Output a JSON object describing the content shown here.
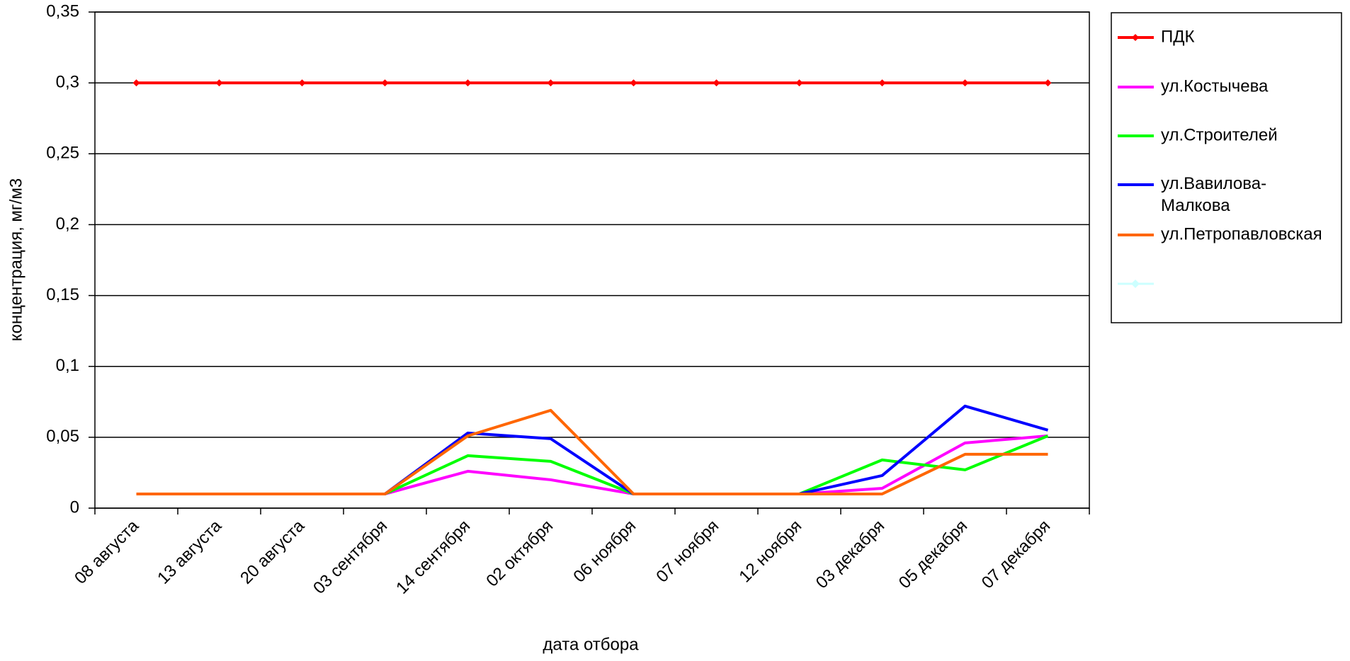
{
  "chart_data": {
    "type": "line",
    "y_label": "концентрация, мг/м3",
    "x_label": "дата отбора",
    "categories": [
      "08 августа",
      "13 августа",
      "20 августа",
      "03 сентября",
      "14 сентября",
      "02 октября",
      "06 ноября",
      "07 ноября",
      "12 ноября",
      "03 декабря",
      "05 декабря",
      "07 декабря"
    ],
    "series": [
      {
        "name": "ПДК",
        "color": "#ff0000",
        "marker": "diamond",
        "values": [
          0.3,
          0.3,
          0.3,
          0.3,
          0.3,
          0.3,
          0.3,
          0.3,
          0.3,
          0.3,
          0.3,
          0.3
        ]
      },
      {
        "name": "ул.Костычева",
        "color": "#ff00ff",
        "values": [
          0.01,
          0.01,
          0.01,
          0.01,
          0.026,
          0.02,
          0.01,
          0.01,
          0.01,
          0.014,
          0.046,
          0.051
        ]
      },
      {
        "name": "ул.Строителей",
        "color": "#00ff00",
        "values": [
          0.01,
          0.01,
          0.01,
          0.01,
          0.037,
          0.033,
          0.01,
          0.01,
          0.01,
          0.034,
          0.027,
          0.051
        ]
      },
      {
        "name": "ул.Вавилова-Малкова",
        "color": "#0000ff",
        "values": [
          0.01,
          0.01,
          0.01,
          0.01,
          0.053,
          0.049,
          0.01,
          0.01,
          0.01,
          0.023,
          0.072,
          0.055
        ]
      },
      {
        "name": "ул.Петропавловская",
        "color": "#ff6600",
        "values": [
          0.01,
          0.01,
          0.01,
          0.01,
          0.051,
          0.069,
          0.01,
          0.01,
          0.01,
          0.01,
          0.038,
          0.038
        ]
      }
    ],
    "ylim": [
      0,
      0.35
    ],
    "yticks": [
      0,
      {
        "value": 0.05,
        "label": "0,05"
      },
      {
        "value": 0.1,
        "label": "0,1"
      },
      {
        "value": 0.15,
        "label": "0,15"
      },
      {
        "value": 0.2,
        "label": "0,2"
      },
      {
        "value": 0.25,
        "label": "0,25"
      },
      {
        "value": 0.3,
        "label": "0,3"
      },
      {
        "value": 0.35,
        "label": "0,35"
      }
    ],
    "grid": true,
    "legend": "right"
  }
}
